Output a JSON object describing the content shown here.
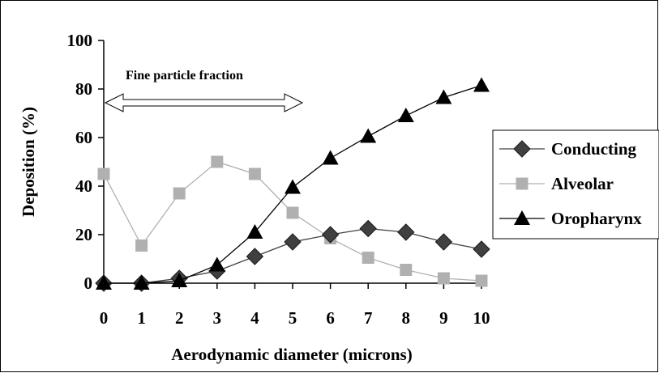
{
  "chart_data": {
    "type": "line",
    "title": "",
    "xlabel": "Aerodynamic diameter  (microns)",
    "ylabel": "Deposition (%)",
    "x": [
      0,
      1,
      2,
      3,
      4,
      5,
      6,
      7,
      8,
      9,
      10
    ],
    "xlim": [
      0,
      10
    ],
    "ylim": [
      0,
      100
    ],
    "x_ticks": [
      "0",
      "1",
      "2",
      "3",
      "4",
      "5",
      "6",
      "7",
      "8",
      "9",
      "10"
    ],
    "y_ticks": [
      "0",
      "20",
      "40",
      "60",
      "80",
      "100"
    ],
    "grid": false,
    "legend_position": "right",
    "series": [
      {
        "name": "Conducting",
        "marker": "diamond",
        "color": "#404040",
        "values": [
          0,
          0,
          2,
          5,
          11,
          17,
          20,
          22.5,
          21,
          17,
          14
        ]
      },
      {
        "name": "Alveolar",
        "marker": "square",
        "color": "#b0b0b0",
        "values": [
          45,
          15.5,
          37,
          50,
          45,
          29,
          18.5,
          10.5,
          5.5,
          2,
          1
        ]
      },
      {
        "name": "Oropharynx",
        "marker": "triangle",
        "color": "#000000",
        "values": [
          0,
          0,
          1,
          7.5,
          21,
          39.5,
          51.5,
          60.5,
          69,
          76.5,
          81.5
        ]
      }
    ],
    "annotation": {
      "text": "Fine particle fraction",
      "arrow_from_x": 0,
      "arrow_to_x": 5
    }
  }
}
